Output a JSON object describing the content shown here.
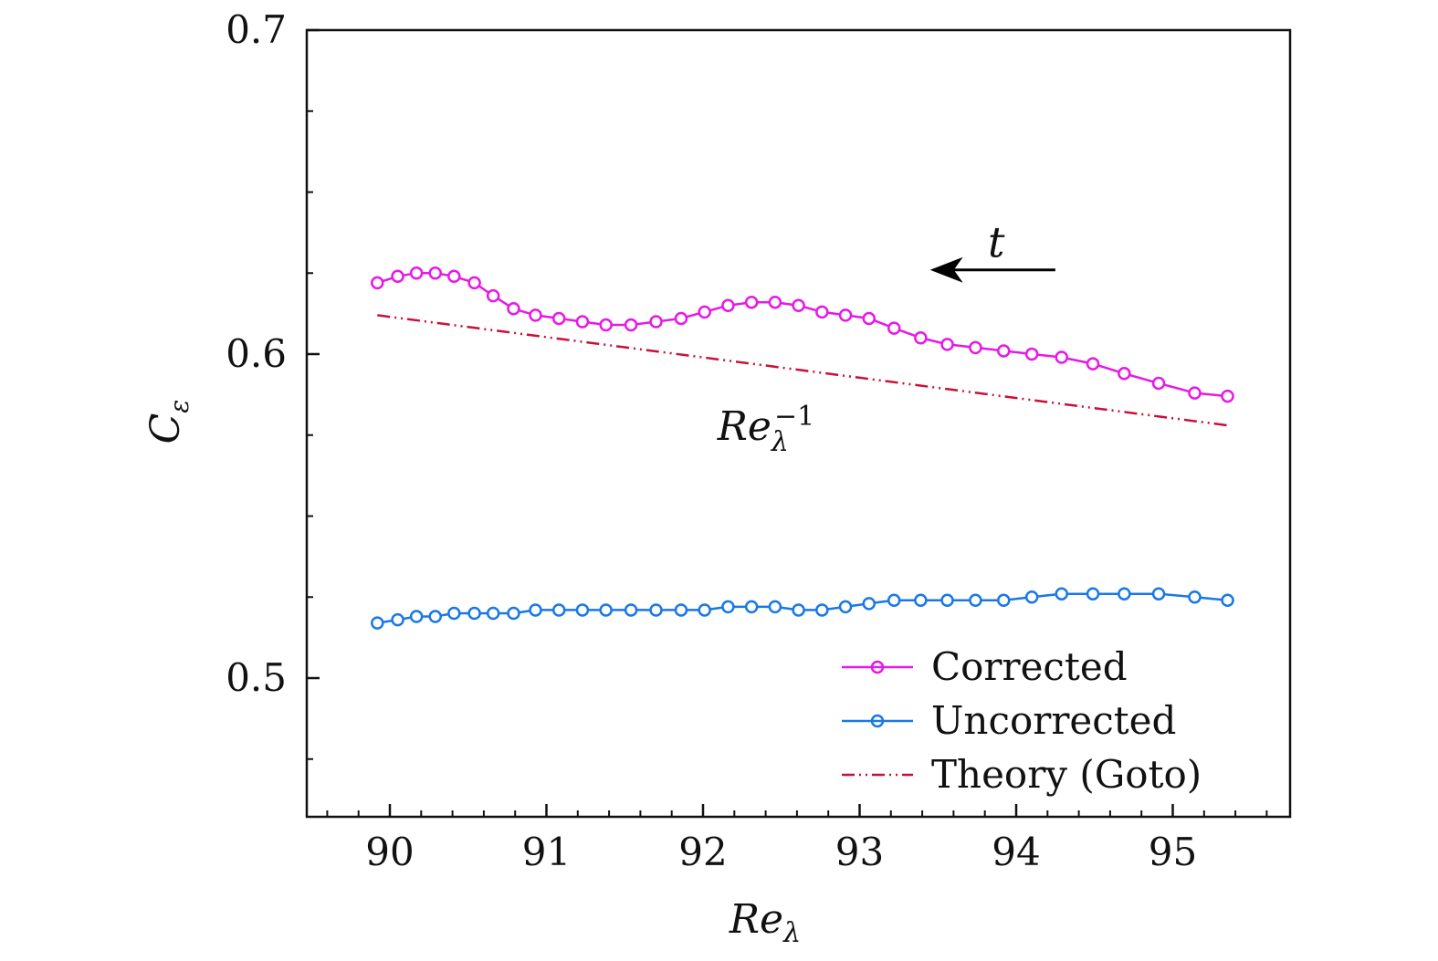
{
  "chart_data": {
    "type": "line",
    "title": "",
    "xlabel_main": "Re",
    "xlabel_sub": "λ",
    "ylabel_main": "C",
    "ylabel_sub": "ε",
    "xlim": [
      89.5,
      95.8
    ],
    "ylim": [
      0.455,
      0.7
    ],
    "x_ticks": [
      90,
      91,
      92,
      93,
      94,
      95
    ],
    "x_tick_labels": [
      "90",
      "91",
      "92",
      "93",
      "94",
      "95"
    ],
    "y_ticks": [
      0.5,
      0.6,
      0.7
    ],
    "y_tick_labels": [
      "0.5",
      "0.6",
      "0.7"
    ],
    "x": [
      89.92,
      90.05,
      90.17,
      90.29,
      90.41,
      90.54,
      90.66,
      90.79,
      90.93,
      91.08,
      91.23,
      91.38,
      91.54,
      91.7,
      91.86,
      92.01,
      92.16,
      92.31,
      92.46,
      92.61,
      92.76,
      92.91,
      93.06,
      93.22,
      93.39,
      93.56,
      93.74,
      93.92,
      94.1,
      94.29,
      94.49,
      94.69,
      94.91,
      95.14,
      95.35
    ],
    "series": [
      {
        "name": "Corrected",
        "color": "#e619e6",
        "marker": "circle",
        "values": [
          0.622,
          0.624,
          0.625,
          0.625,
          0.624,
          0.622,
          0.618,
          0.614,
          0.612,
          0.611,
          0.61,
          0.609,
          0.609,
          0.61,
          0.611,
          0.613,
          0.615,
          0.616,
          0.616,
          0.615,
          0.613,
          0.612,
          0.611,
          0.608,
          0.605,
          0.603,
          0.602,
          0.601,
          0.6,
          0.599,
          0.597,
          0.594,
          0.591,
          0.588,
          0.587
        ]
      },
      {
        "name": "Uncorrected",
        "color": "#1a78e6",
        "marker": "circle",
        "values": [
          0.517,
          0.518,
          0.519,
          0.519,
          0.52,
          0.52,
          0.52,
          0.52,
          0.521,
          0.521,
          0.521,
          0.521,
          0.521,
          0.521,
          0.521,
          0.521,
          0.522,
          0.522,
          0.522,
          0.521,
          0.521,
          0.522,
          0.523,
          0.524,
          0.524,
          0.524,
          0.524,
          0.524,
          0.525,
          0.526,
          0.526,
          0.526,
          0.526,
          0.525,
          0.524
        ]
      },
      {
        "name": "Theory (Goto)",
        "color": "#c8103a",
        "style": "dash-dot-dot",
        "x": [
          89.92,
          95.35
        ],
        "values": [
          0.612,
          0.578
        ]
      }
    ],
    "legend": {
      "position": "bottom-right",
      "entries": [
        "Corrected",
        "Uncorrected",
        "Theory (Goto)"
      ]
    },
    "annotations": {
      "arrow_label": "t",
      "arrow_direction": "left",
      "arrow_x_range": [
        93.45,
        94.25
      ],
      "arrow_y": 0.626,
      "curve_label_main": "Re",
      "curve_label_sub": "λ",
      "curve_label_sup": "−1",
      "curve_label_at": [
        92.5,
        0.582
      ]
    }
  }
}
